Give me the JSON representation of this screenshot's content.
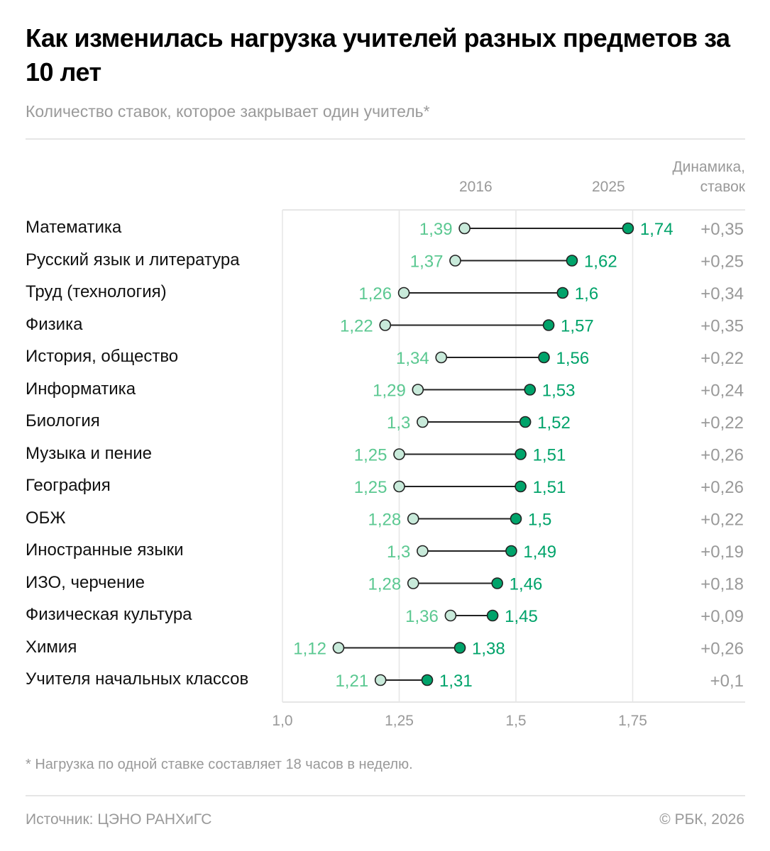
{
  "title": "Как изменилась нагрузка учителей разных предметов за 10 лет",
  "subtitle": "Количество ставок, которое закрывает один учитель*",
  "headers": {
    "y2016": "2016",
    "y2025": "2025",
    "dyn_line1": "Динамика,",
    "dyn_line2": "ставок"
  },
  "footnote": "* Нагрузка по одной ставке составляет 18 часов в неделю.",
  "source": "Источник: ЦЭНО РАНХиГС",
  "copyright": "© РБК, 2026",
  "colors": {
    "v2016_fill": "#c8eada",
    "v2016_text": "#5bc891",
    "v2025_fill": "#00a36a",
    "v2025_text": "#00a36a",
    "delta_text": "#999999"
  },
  "chart_data": {
    "type": "dumbbell",
    "title": "Как изменилась нагрузка учителей разных предметов за 10 лет",
    "subtitle": "Количество ставок, которое закрывает один учитель*",
    "xlabel": "",
    "ylabel": "",
    "xlim": [
      1.0,
      1.95
    ],
    "ticks": [
      1.0,
      1.25,
      1.5,
      1.75
    ],
    "tick_labels": [
      "1,0",
      "1,25",
      "1,5",
      "1,75"
    ],
    "grid": true,
    "series_names": [
      "2016",
      "2025"
    ],
    "categories": [
      "Математика",
      "Русский язык и литература",
      "Труд (технология)",
      "Физика",
      "История, общество",
      "Информатика",
      "Биология",
      "Музыка и пение",
      "География",
      "ОБЖ",
      "Иностранные языки",
      "ИЗО, черчение",
      "Физическая культура",
      "Химия",
      "Учителя начальных классов"
    ],
    "series": [
      {
        "name": "2016",
        "values": [
          1.39,
          1.37,
          1.26,
          1.22,
          1.34,
          1.29,
          1.3,
          1.25,
          1.25,
          1.28,
          1.3,
          1.28,
          1.36,
          1.12,
          1.21
        ],
        "labels": [
          "1,39",
          "1,37",
          "1,26",
          "1,22",
          "1,34",
          "1,29",
          "1,3",
          "1,25",
          "1,25",
          "1,28",
          "1,3",
          "1,28",
          "1,36",
          "1,12",
          "1,21"
        ]
      },
      {
        "name": "2025",
        "values": [
          1.74,
          1.62,
          1.6,
          1.57,
          1.56,
          1.53,
          1.52,
          1.51,
          1.51,
          1.5,
          1.49,
          1.46,
          1.45,
          1.38,
          1.31
        ],
        "labels": [
          "1,74",
          "1,62",
          "1,6",
          "1,57",
          "1,56",
          "1,53",
          "1,52",
          "1,51",
          "1,51",
          "1,5",
          "1,49",
          "1,46",
          "1,45",
          "1,38",
          "1,31"
        ]
      }
    ],
    "delta_labels": [
      "+0,35",
      "+0,25",
      "+0,34",
      "+0,35",
      "+0,22",
      "+0,24",
      "+0,22",
      "+0,26",
      "+0,26",
      "+0,22",
      "+0,19",
      "+0,18",
      "+0,09",
      "+0,26",
      "+0,1"
    ]
  }
}
